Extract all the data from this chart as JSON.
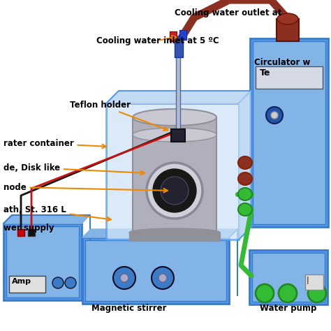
{
  "bg": "#ffffff",
  "blue1": "#3a7cc7",
  "blue2": "#5599ee",
  "blue3": "#82b4e8",
  "blue4": "#b8d4f0",
  "blue5": "#d0e4f8",
  "gray1": "#909098",
  "gray2": "#b0b0bc",
  "gray3": "#c8c8d2",
  "dark": "#111122",
  "red_wire": "#cc1111",
  "dark_red": "#882200",
  "brown_red": "#8b3020",
  "green_tube": "#33bb33",
  "orange_arrow": "#ee8800",
  "black": "#000000",
  "white": "#ffffff",
  "label_fs": 8.0,
  "bold_fs": 8.5,
  "texts": {
    "cool_in": "Cooling water inlet at 5 ºC",
    "cool_out": "Cooling water outlet at",
    "teflon": "Teflon holder",
    "water_cont": "rater container",
    "cathode": "de, Disk like",
    "anode": "node",
    "bath": "ath, St. 316 L",
    "ps": "wer supply",
    "amp": "Amp",
    "magnetic": "Magnetic stirrer",
    "wp": "Water pump",
    "circ": "Circulator w",
    "te": "Te"
  }
}
